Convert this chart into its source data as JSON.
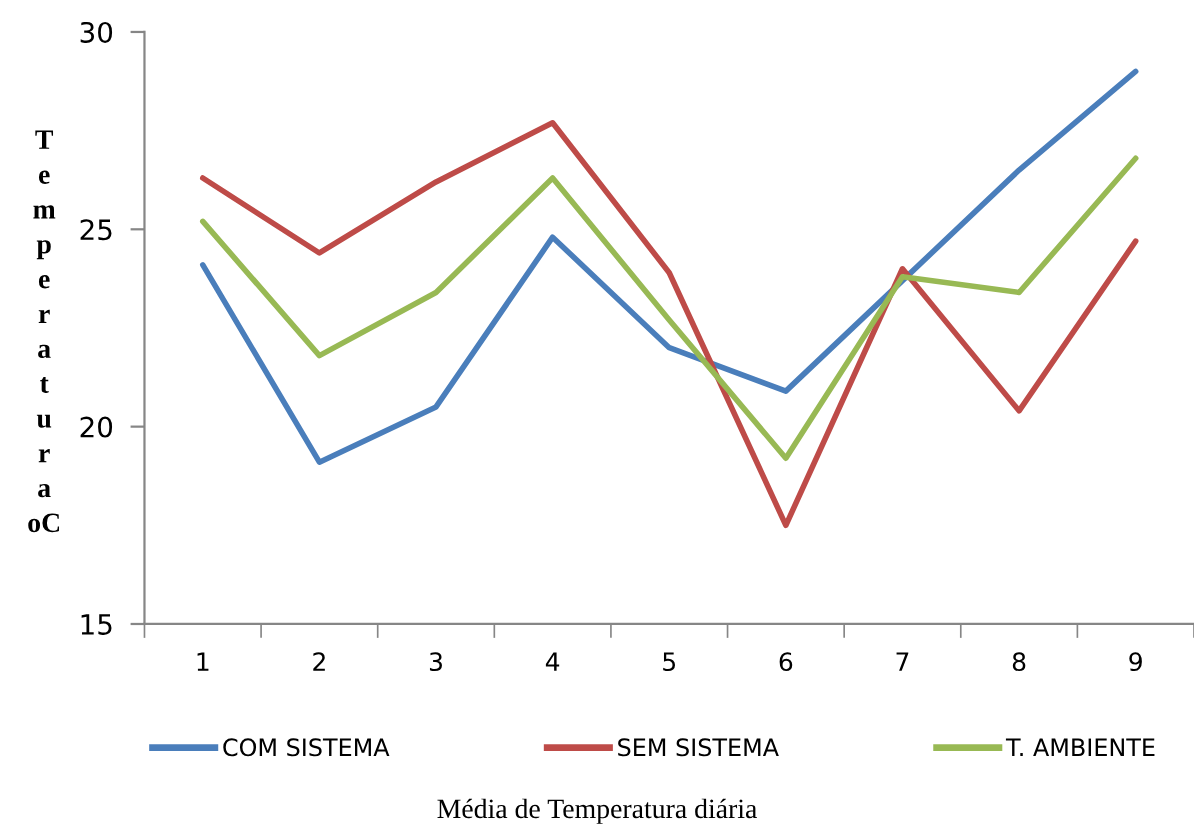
{
  "chart_data": {
    "type": "line",
    "categories": [
      "1",
      "2",
      "3",
      "4",
      "5",
      "6",
      "7",
      "8",
      "9"
    ],
    "xlabel": "Média de Temperatura diária",
    "ylabel": "Temperatura oC",
    "ylim": [
      15,
      30
    ],
    "yticks": [
      15,
      20,
      25,
      30
    ],
    "grid": false,
    "legend": "bottom",
    "marker": "none",
    "line_style": "solid",
    "series": [
      {
        "name": "COM SISTEMA",
        "color": "#4a7ebb",
        "values": [
          24.1,
          19.1,
          20.5,
          24.8,
          22.0,
          20.9,
          23.7,
          26.5,
          29.0
        ]
      },
      {
        "name": "SEM SISTEMA",
        "color": "#be4b48",
        "values": [
          26.3,
          24.4,
          26.2,
          27.7,
          23.9,
          17.5,
          24.0,
          20.4,
          24.7
        ]
      },
      {
        "name": "T. AMBIENTE",
        "color": "#98b954",
        "values": [
          25.2,
          21.8,
          23.4,
          26.3,
          22.7,
          19.2,
          23.8,
          23.4,
          26.8
        ]
      }
    ]
  }
}
